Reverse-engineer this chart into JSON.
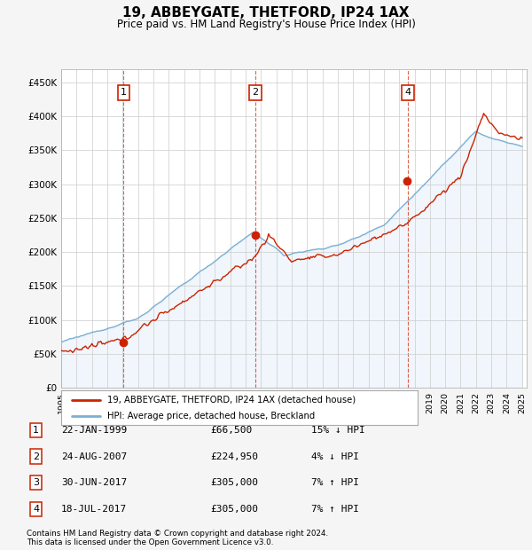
{
  "title": "19, ABBEYGATE, THETFORD, IP24 1AX",
  "subtitle": "Price paid vs. HM Land Registry's House Price Index (HPI)",
  "ylabel_ticks": [
    "£0",
    "£50K",
    "£100K",
    "£150K",
    "£200K",
    "£250K",
    "£300K",
    "£350K",
    "£400K",
    "£450K"
  ],
  "ytick_values": [
    0,
    50000,
    100000,
    150000,
    200000,
    250000,
    300000,
    350000,
    400000,
    450000
  ],
  "ylim": [
    0,
    470000
  ],
  "xlim_start": 1995.0,
  "xlim_end": 2025.3,
  "transaction_boxes_top": [
    {
      "num": 1,
      "year_x": 1999.06
    },
    {
      "num": 2,
      "year_x": 2007.65
    },
    {
      "num": 4,
      "year_x": 2017.55
    }
  ],
  "transaction_dots": [
    {
      "year_x": 1999.06,
      "price": 66500
    },
    {
      "year_x": 2007.65,
      "price": 224950
    },
    {
      "year_x": 2017.5,
      "price": 305000
    }
  ],
  "transaction_vlines": [
    1999.06,
    2007.65,
    2017.55
  ],
  "legend_line1": "19, ABBEYGATE, THETFORD, IP24 1AX (detached house)",
  "legend_line2": "HPI: Average price, detached house, Breckland",
  "table_rows": [
    [
      1,
      "22-JAN-1999",
      "£66,500",
      "15% ↓ HPI"
    ],
    [
      2,
      "24-AUG-2007",
      "£224,950",
      "4% ↓ HPI"
    ],
    [
      3,
      "30-JUN-2017",
      "£305,000",
      "7% ↑ HPI"
    ],
    [
      4,
      "18-JUL-2017",
      "£305,000",
      "7% ↑ HPI"
    ]
  ],
  "footer1": "Contains HM Land Registry data © Crown copyright and database right 2024.",
  "footer2": "This data is licensed under the Open Government Licence v3.0.",
  "hpi_color": "#7bafd4",
  "hpi_fill": "#d6e8f5",
  "price_color": "#cc2200",
  "background_color": "#f5f5f5",
  "plot_bg": "#ffffff",
  "box_color": "#cc2200",
  "grid_color": "#cccccc"
}
